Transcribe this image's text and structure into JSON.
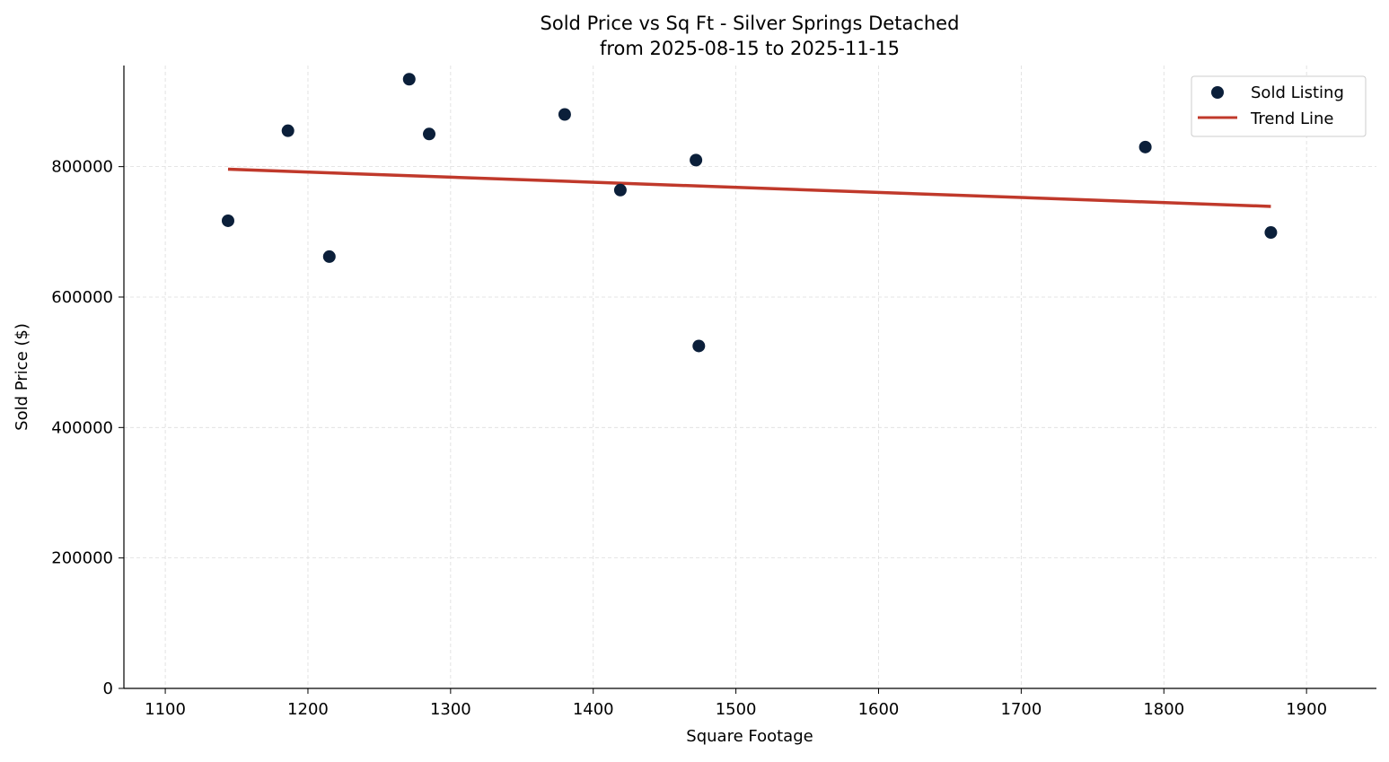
{
  "chart_data": {
    "type": "scatter",
    "title": "Sold Price vs Sq Ft - Silver Springs Detached",
    "subtitle": "from 2025-08-15 to 2025-11-15",
    "xlabel": "Square Footage",
    "ylabel": "Sold Price ($)",
    "xlim": [
      1071,
      1949
    ],
    "ylim": [
      0,
      955000
    ],
    "xticks": [
      1100,
      1200,
      1300,
      1400,
      1500,
      1600,
      1700,
      1800,
      1900
    ],
    "yticks": [
      0,
      200000,
      400000,
      600000,
      800000
    ],
    "grid": true,
    "legend_position": "top-right",
    "series": [
      {
        "name": "Sold Listing",
        "type": "scatter",
        "color": "#0b1f3a",
        "x": [
          1144,
          1186,
          1215,
          1271,
          1285,
          1380,
          1419,
          1472,
          1474,
          1787,
          1875
        ],
        "y": [
          717000,
          855000,
          662000,
          934000,
          850000,
          880000,
          764000,
          810000,
          525000,
          830000,
          699000
        ]
      },
      {
        "name": "Trend Line",
        "type": "line",
        "color": "#c0392b",
        "x": [
          1144,
          1875
        ],
        "y": [
          796000,
          739000
        ]
      }
    ]
  }
}
